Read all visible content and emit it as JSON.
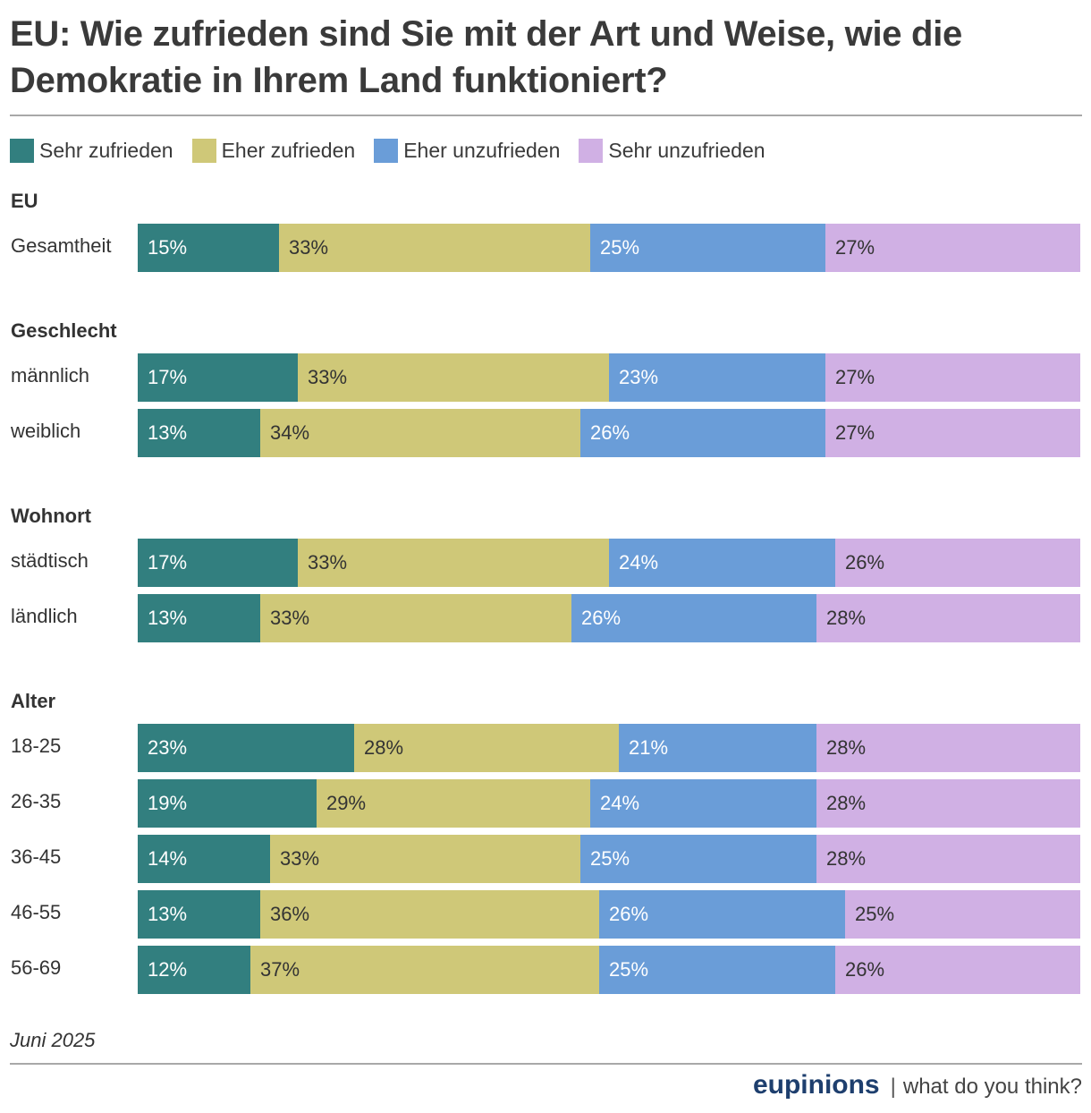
{
  "title": "EU: Wie zufrieden sind Sie mit der Art und Weise, wie die Demokratie in Ihrem Land funktioniert?",
  "footnote": "Juni 2025",
  "brand": {
    "name": "eupinions",
    "separator": "|",
    "tagline": "what do you think?"
  },
  "colors": {
    "sehr_zufrieden": "#327f7f",
    "eher_zufrieden": "#cfc878",
    "eher_unzufrieden": "#6a9dd8",
    "sehr_unzufrieden": "#d0b0e4"
  },
  "chart_data": {
    "type": "bar",
    "orientation": "horizontal",
    "stacked": true,
    "unit": "%",
    "legend_position": "top-left",
    "series": [
      {
        "name": "Sehr zufrieden",
        "color": "#327f7f",
        "text_color": "#ffffff"
      },
      {
        "name": "Eher zufrieden",
        "color": "#cfc878",
        "text_color": "#333333"
      },
      {
        "name": "Eher unzufrieden",
        "color": "#6a9dd8",
        "text_color": "#ffffff"
      },
      {
        "name": "Sehr unzufrieden",
        "color": "#d0b0e4",
        "text_color": "#333333"
      }
    ],
    "groups": [
      {
        "label": "EU",
        "rows": [
          {
            "label": "Gesamtheit",
            "values": [
              15,
              33,
              25,
              27
            ]
          }
        ]
      },
      {
        "label": "Geschlecht",
        "rows": [
          {
            "label": "männlich",
            "values": [
              17,
              33,
              23,
              27
            ]
          },
          {
            "label": "weiblich",
            "values": [
              13,
              34,
              26,
              27
            ]
          }
        ]
      },
      {
        "label": "Wohnort",
        "rows": [
          {
            "label": "städtisch",
            "values": [
              17,
              33,
              24,
              26
            ]
          },
          {
            "label": "ländlich",
            "values": [
              13,
              33,
              26,
              28
            ]
          }
        ]
      },
      {
        "label": "Alter",
        "rows": [
          {
            "label": "18-25",
            "values": [
              23,
              28,
              21,
              28
            ]
          },
          {
            "label": "26-35",
            "values": [
              19,
              29,
              24,
              28
            ]
          },
          {
            "label": "36-45",
            "values": [
              14,
              33,
              25,
              28
            ]
          },
          {
            "label": "46-55",
            "values": [
              13,
              36,
              26,
              25
            ]
          },
          {
            "label": "56-69",
            "values": [
              12,
              37,
              25,
              26
            ]
          }
        ]
      }
    ]
  }
}
